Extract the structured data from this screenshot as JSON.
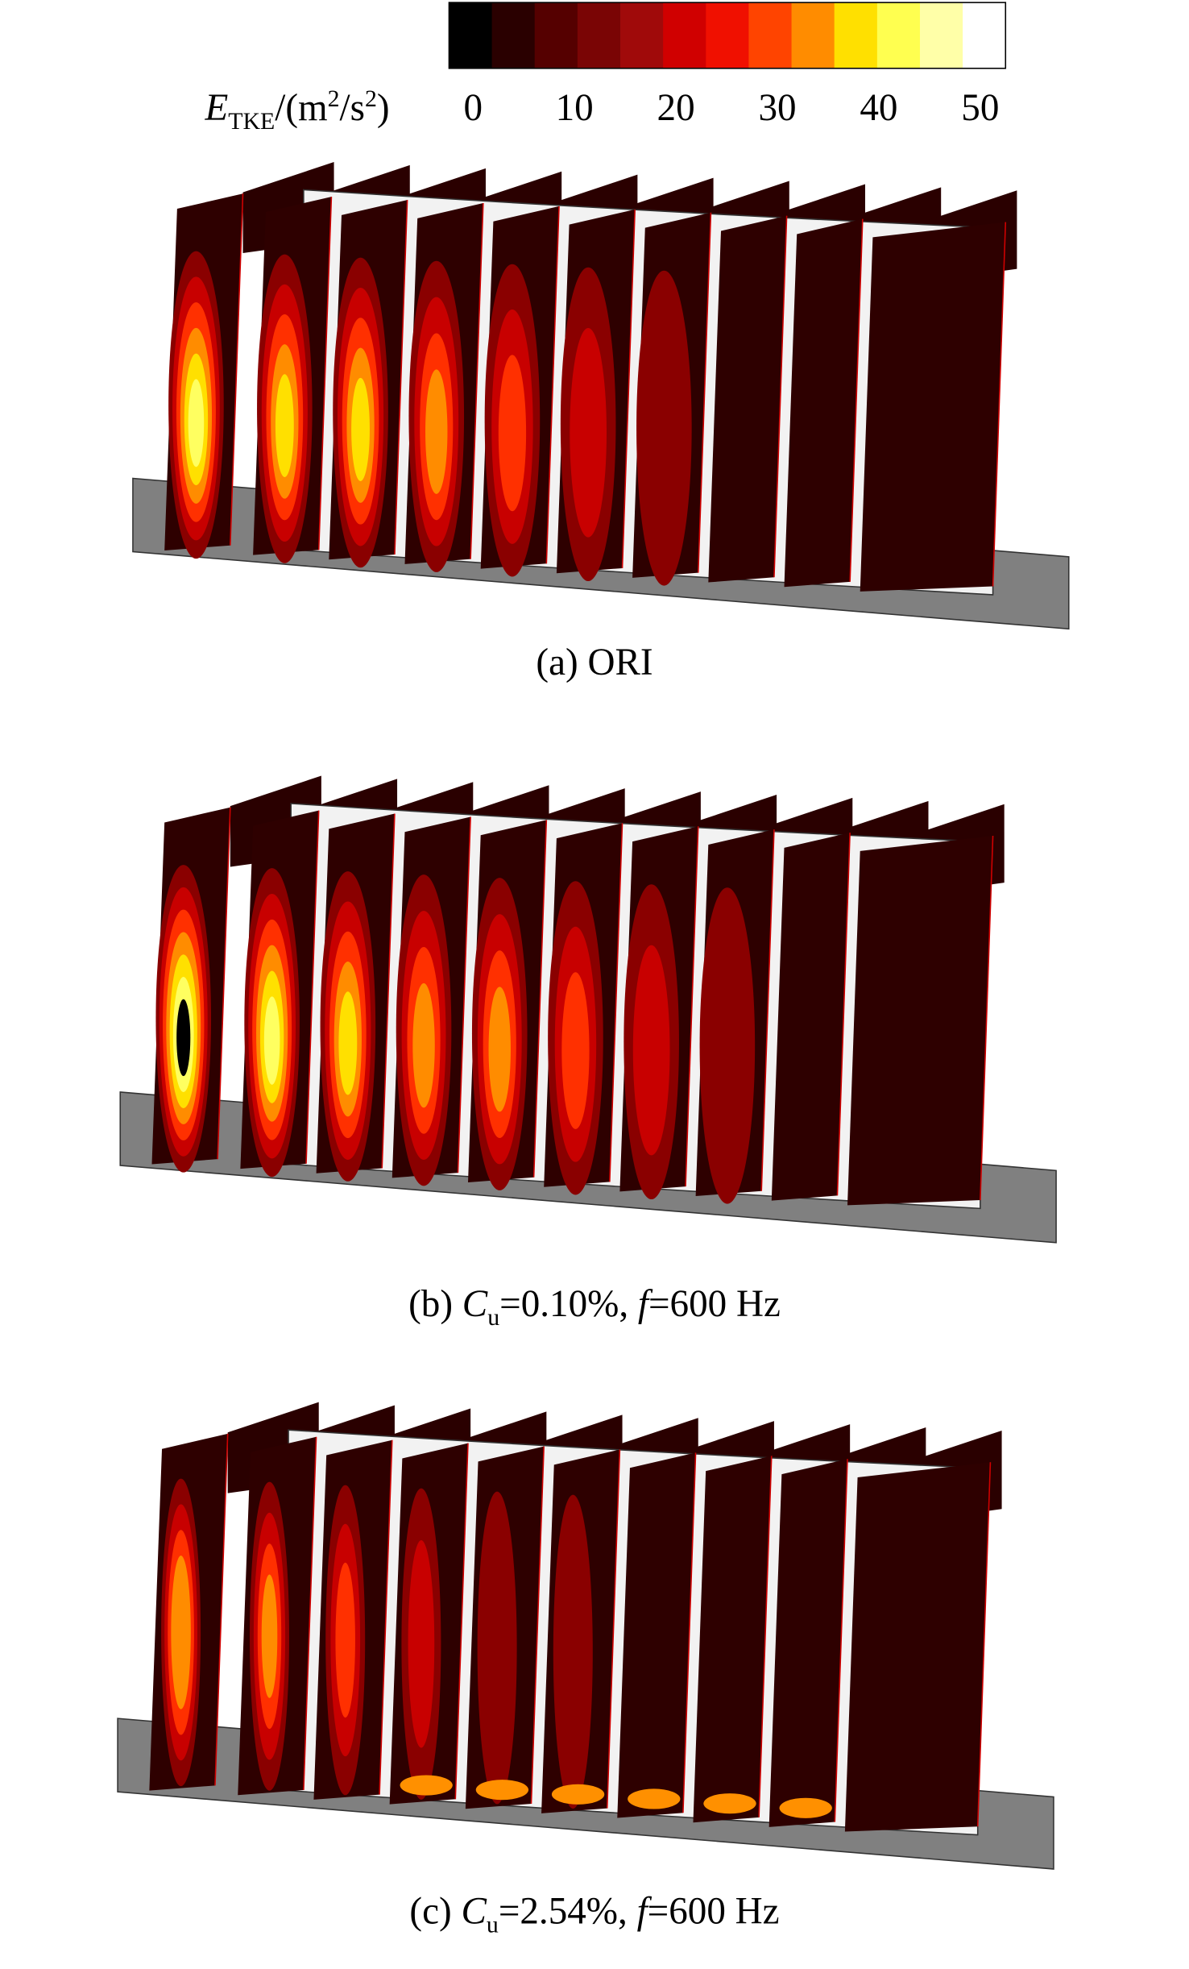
{
  "colorbar": {
    "label": [
      "E",
      "TKE",
      "/(m",
      "2",
      "/s",
      "2",
      ")"
    ],
    "ticks": [
      0,
      10,
      20,
      30,
      40,
      50
    ],
    "colors": [
      "#000000",
      "#2a0000",
      "#550000",
      "#7a0505",
      "#a00a0a",
      "#d00000",
      "#f01000",
      "#ff4400",
      "#ff8c00",
      "#ffe000",
      "#ffff50",
      "#ffffa8",
      "#ffffff"
    ]
  },
  "panels": [
    {
      "caption": [
        "(a) ORI"
      ]
    },
    {
      "caption": [
        "(b) ",
        "C",
        "u",
        "=0.10%, ",
        "f",
        "=600 Hz"
      ]
    },
    {
      "caption": [
        "(c) ",
        "C",
        "u",
        "=2.54%, ",
        "f",
        "=600 Hz"
      ]
    }
  ]
}
